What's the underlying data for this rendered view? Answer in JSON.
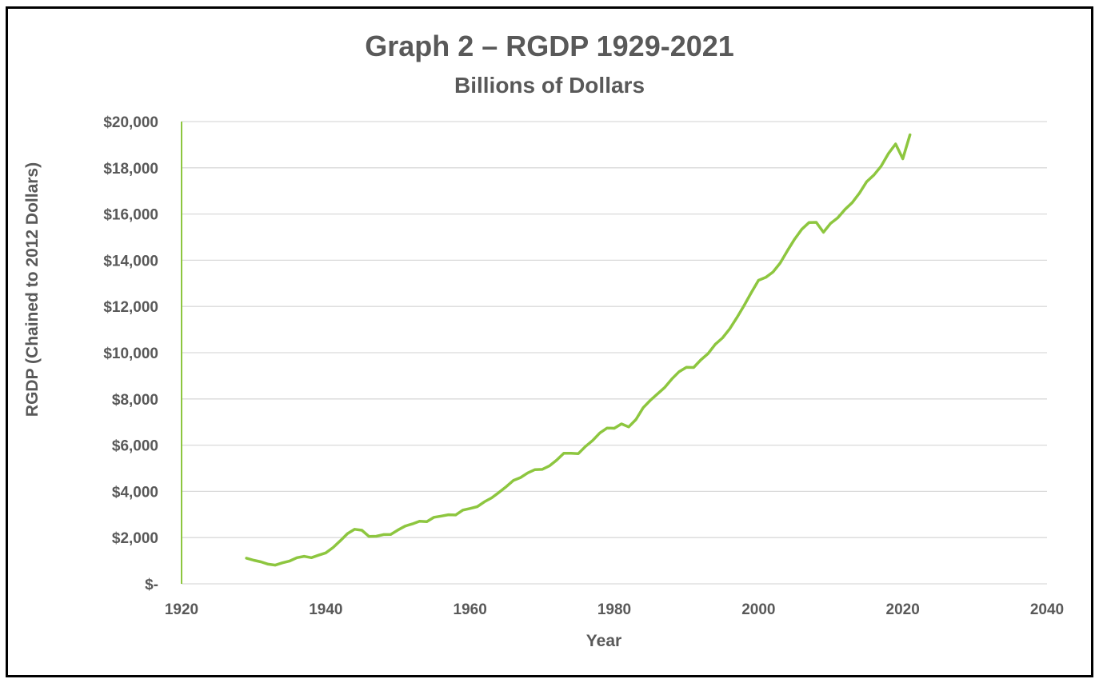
{
  "chart_data": {
    "type": "line",
    "title": "Graph 2 – RGDP 1929-2021",
    "subtitle": "Billions of Dollars",
    "xlabel": "Year",
    "ylabel": "RGDP (Chained to 2012 Dollars)",
    "xlim": [
      1920,
      2040
    ],
    "ylim": [
      0,
      20000
    ],
    "x_ticks": [
      1920,
      1940,
      1960,
      1980,
      2000,
      2020,
      2040
    ],
    "x_tick_labels": [
      "1920",
      "1940",
      "1960",
      "1980",
      "2000",
      "2020",
      "2040"
    ],
    "y_ticks": [
      0,
      2000,
      4000,
      6000,
      8000,
      10000,
      12000,
      14000,
      16000,
      18000,
      20000
    ],
    "y_tick_labels": [
      "$-",
      "$2,000",
      "$4,000",
      "$6,000",
      "$8,000",
      "$10,000",
      "$12,000",
      "$14,000",
      "$16,000",
      "$18,000",
      "$20,000"
    ],
    "grid": "horizontal",
    "legend": "none",
    "colors": {
      "line": "#8DC63F",
      "y_axis": "#8DC63F",
      "grid": "#d9d9d9",
      "text": "#595959"
    },
    "series": [
      {
        "x": [
          1929,
          1930,
          1931,
          1932,
          1933,
          1934,
          1935,
          1936,
          1937,
          1938,
          1939,
          1940,
          1941,
          1942,
          1943,
          1944,
          1945,
          1946,
          1947,
          1948,
          1949,
          1950,
          1951,
          1952,
          1953,
          1954,
          1955,
          1956,
          1957,
          1958,
          1959,
          1960,
          1961,
          1962,
          1963,
          1964,
          1965,
          1966,
          1967,
          1968,
          1969,
          1970,
          1971,
          1972,
          1973,
          1974,
          1975,
          1976,
          1977,
          1978,
          1979,
          1980,
          1981,
          1982,
          1983,
          1984,
          1985,
          1986,
          1987,
          1988,
          1989,
          1990,
          1991,
          1992,
          1993,
          1994,
          1995,
          1996,
          1997,
          1998,
          1999,
          2000,
          2001,
          2002,
          2003,
          2004,
          2005,
          2006,
          2007,
          2008,
          2009,
          2010,
          2011,
          2012,
          2013,
          2014,
          2015,
          2016,
          2017,
          2018,
          2019,
          2020,
          2021
        ],
        "values": [
          1110,
          1020,
          950,
          850,
          810,
          910,
          990,
          1130,
          1190,
          1130,
          1240,
          1340,
          1570,
          1860,
          2170,
          2360,
          2320,
          2050,
          2060,
          2130,
          2140,
          2330,
          2500,
          2590,
          2710,
          2690,
          2880,
          2930,
          2990,
          2980,
          3190,
          3260,
          3340,
          3550,
          3720,
          3950,
          4200,
          4470,
          4600,
          4800,
          4940,
          4950,
          5100,
          5350,
          5650,
          5650,
          5630,
          5940,
          6200,
          6530,
          6740,
          6730,
          6920,
          6790,
          7110,
          7620,
          7940,
          8220,
          8500,
          8870,
          9180,
          9370,
          9360,
          9690,
          9960,
          10360,
          10640,
          11030,
          11520,
          12040,
          12600,
          13130,
          13260,
          13490,
          13880,
          14410,
          14910,
          15340,
          15630,
          15640,
          15210,
          15600,
          15840,
          16200,
          16500,
          16910,
          17400,
          17690,
          18070,
          18610,
          19030,
          18390,
          19430
        ]
      }
    ]
  }
}
